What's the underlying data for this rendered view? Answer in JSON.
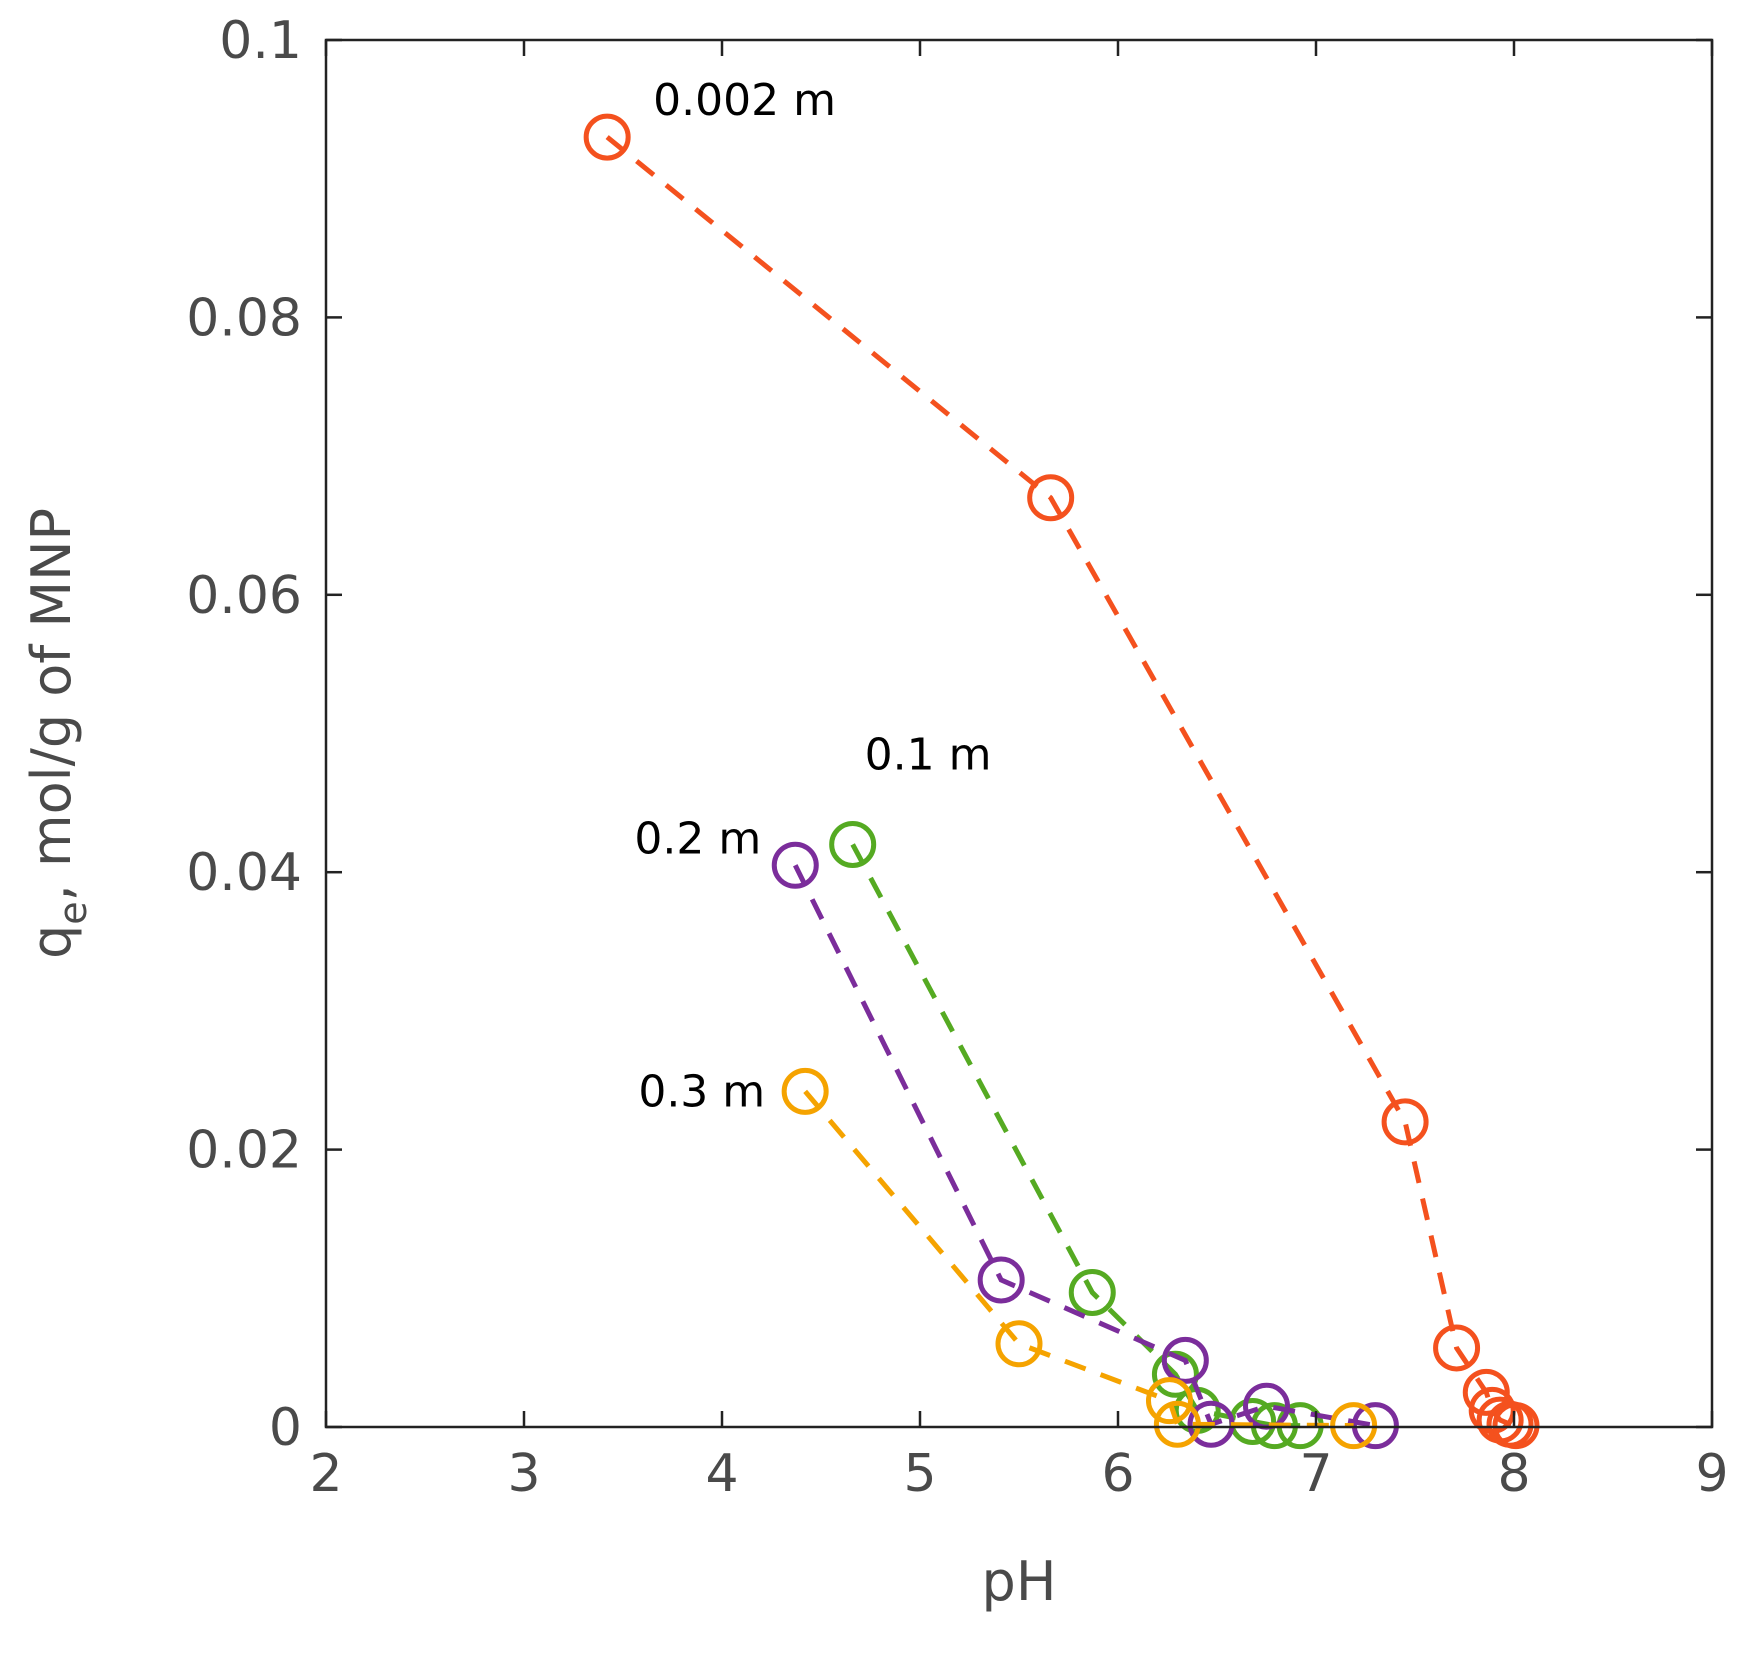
{
  "chart_data": {
    "type": "scatter",
    "title": "",
    "xlabel": "pH",
    "ylabel_main": "q",
    "ylabel_sub": "e",
    "ylabel_rest": ", mol/g of MNP",
    "xlim": [
      2,
      9
    ],
    "ylim": [
      0,
      0.1
    ],
    "x_ticks": [
      2,
      3,
      4,
      5,
      6,
      7,
      8,
      9
    ],
    "y_ticks": [
      0,
      0.02,
      0.04,
      0.06,
      0.08,
      0.1
    ],
    "x_tick_labels": [
      "2",
      "3",
      "4",
      "5",
      "6",
      "7",
      "8",
      "9"
    ],
    "y_tick_labels": [
      "0",
      "0.02",
      "0.04",
      "0.06",
      "0.08",
      "0.1"
    ],
    "grid": false,
    "line_style": "dashed",
    "marker": "open-circle",
    "series": [
      {
        "name": "0.002 m",
        "label": "0.002 m",
        "color": "#F4511E",
        "x": [
          3.42,
          5.66,
          7.45,
          7.71,
          7.86,
          7.89,
          7.93,
          7.98,
          8.01
        ],
        "y": [
          0.093,
          0.067,
          0.022,
          0.0057,
          0.0025,
          0.0012,
          0.0005,
          0.0002,
          0.0001
        ]
      },
      {
        "name": "0.1 m",
        "label": "0.1 m",
        "color": "#55AA22",
        "x": [
          4.66,
          5.87,
          6.29,
          6.4,
          6.68,
          6.79,
          6.92
        ],
        "y": [
          0.042,
          0.0097,
          0.0038,
          0.0012,
          0.0004,
          0.0001,
          0.0001
        ]
      },
      {
        "name": "0.2 m",
        "label": "0.2 m",
        "color": "#7B2D9B",
        "x": [
          4.37,
          5.41,
          6.34,
          6.47,
          6.75,
          7.3
        ],
        "y": [
          0.0405,
          0.0106,
          0.0048,
          0.0002,
          0.0015,
          0.0001
        ]
      },
      {
        "name": "0.3 m",
        "label": "0.3 m",
        "color": "#F5A300",
        "x": [
          4.42,
          5.5,
          6.26,
          6.3,
          7.19
        ],
        "y": [
          0.0242,
          0.006,
          0.0019,
          0.0002,
          0.0001
        ]
      }
    ]
  }
}
